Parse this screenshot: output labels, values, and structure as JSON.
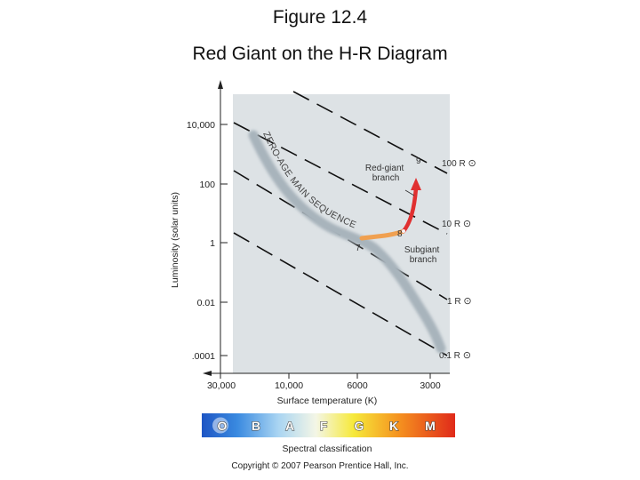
{
  "title": {
    "line1": "Figure 12.4",
    "line2": "Red Giant on the H-R Diagram"
  },
  "axes": {
    "ylabel": "Luminosity (solar units)",
    "xlabel": "Surface temperature (K)",
    "y_ticks": [
      "10,000",
      "100",
      "1",
      "0.01",
      ".0001"
    ],
    "x_ticks": [
      "30,000",
      "10,000",
      "6000",
      "3000"
    ]
  },
  "radius_labels": [
    "100 R",
    "10 R",
    "1 R",
    "0.1 R"
  ],
  "sun_symbol": "⊙",
  "main_sequence_label": "ZERO-AGE MAIN SEQUENCE",
  "points": [
    "7",
    "8",
    "9"
  ],
  "annotations": {
    "red_giant": [
      "Red-giant",
      "branch"
    ],
    "subgiant": [
      "Subgiant",
      "branch"
    ]
  },
  "spectral": {
    "classes": [
      "O",
      "B",
      "A",
      "F",
      "G",
      "K",
      "M"
    ],
    "label": "Spectral classification"
  },
  "copyright": "Copyright © 2007 Pearson Prentice Hall, Inc.",
  "colors": {
    "plot_bg": "#dde2e5",
    "track_red": "#e03030",
    "track_orange": "#f0a050",
    "main_sequence": "#a8b4bc"
  }
}
